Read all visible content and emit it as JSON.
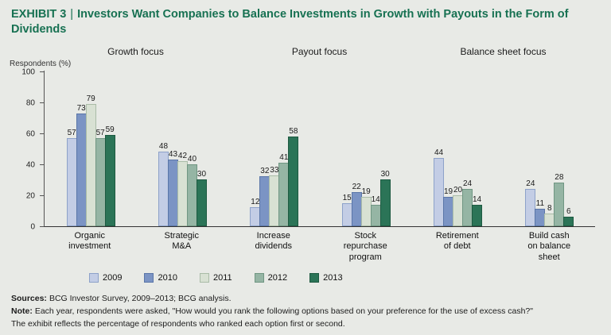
{
  "title": {
    "exhibit_label": "EXHIBIT 3",
    "separator": "|",
    "text": "Investors Want Companies to Balance Investments in Growth with Payouts in the Form of Dividends",
    "color": "#177152"
  },
  "chart_data": {
    "type": "bar",
    "title": "Investors Want Companies to Balance Investments in Growth with Payouts in the Form of Dividends",
    "ylabel": "Respondents (%)",
    "ylim": [
      0,
      100
    ],
    "yticks": [
      0,
      20,
      40,
      60,
      80,
      100
    ],
    "grid": false,
    "legend_position": "bottom",
    "series": [
      {
        "name": "2009",
        "color": "#c3cde5",
        "border": "#8da2c9"
      },
      {
        "name": "2010",
        "color": "#7b94c4",
        "border": "#5a76a8"
      },
      {
        "name": "2011",
        "color": "#d8e1d3",
        "border": "#a9bca7"
      },
      {
        "name": "2012",
        "color": "#95b5a4",
        "border": "#6f9682"
      },
      {
        "name": "2013",
        "color": "#2b7457",
        "border": "#1d5a41"
      }
    ],
    "sections": [
      {
        "label": "Growth focus",
        "groups": [
          {
            "category": "Organic investment",
            "label_lines": [
              "Organic",
              "investment"
            ],
            "values": [
              57,
              73,
              79,
              57,
              59
            ]
          },
          {
            "category": "Strategic M&A",
            "label_lines": [
              "Strategic",
              "M&A"
            ],
            "values": [
              48,
              43,
              42,
              40,
              30
            ]
          }
        ]
      },
      {
        "label": "Payout focus",
        "groups": [
          {
            "category": "Increase dividends",
            "label_lines": [
              "Increase",
              "dividends"
            ],
            "values": [
              12,
              32,
              33,
              41,
              58
            ]
          },
          {
            "category": "Stock repurchase program",
            "label_lines": [
              "Stock",
              "repurchase",
              "program"
            ],
            "values": [
              15,
              22,
              19,
              14,
              30
            ]
          }
        ]
      },
      {
        "label": "Balance sheet focus",
        "groups": [
          {
            "category": "Retirement of debt",
            "label_lines": [
              "Retirement",
              "of debt"
            ],
            "values": [
              44,
              19,
              20,
              24,
              14
            ]
          },
          {
            "category": "Build cash on balance sheet",
            "label_lines": [
              "Build cash",
              "on balance",
              "sheet"
            ],
            "values": [
              24,
              11,
              8,
              28,
              6
            ]
          }
        ]
      }
    ]
  },
  "footer": {
    "sources_label": "Sources:",
    "sources_text": "BCG Investor Survey, 2009–2013; BCG analysis.",
    "note_label": "Note:",
    "note_text": "Each year, respondents were asked, \"How would you rank the following options based on your preference for the use of excess cash?\"",
    "note_text_2": "The exhibit reflects the percentage of respondents who ranked each option first or second."
  }
}
